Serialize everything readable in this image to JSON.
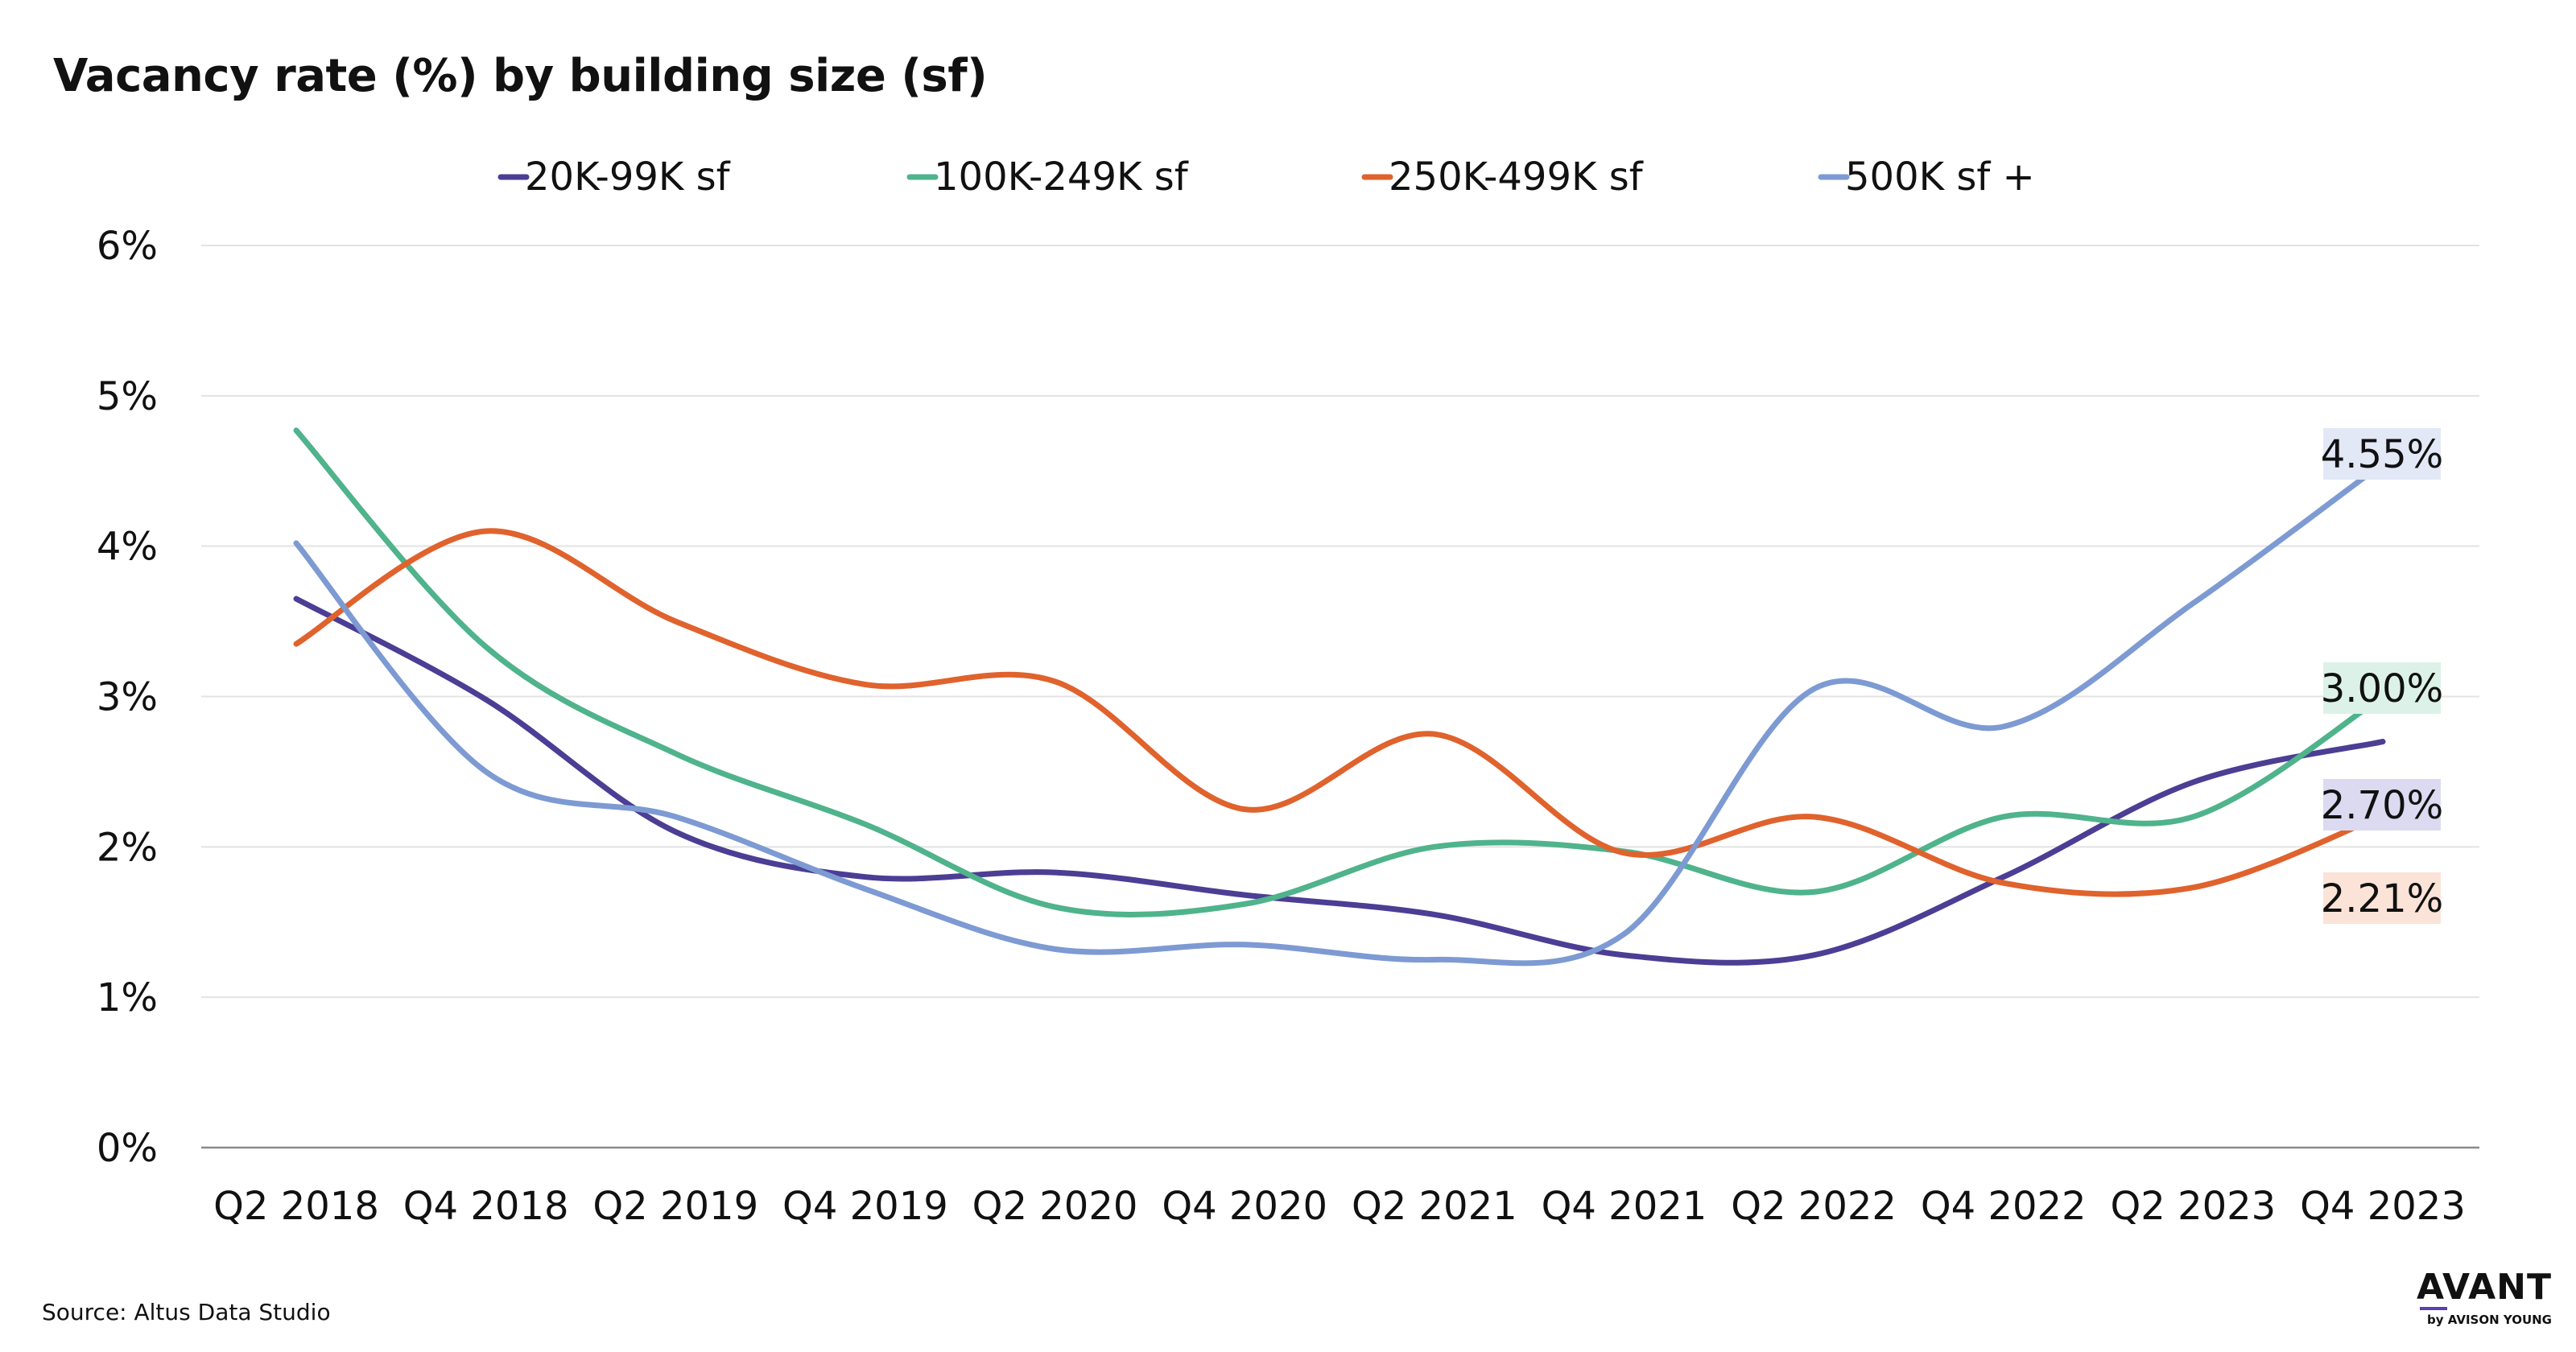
{
  "title": "Vacancy rate (%) by building size (sf)",
  "source": "Source:  Altus Data Studio",
  "logo": {
    "main": "AVANT",
    "sub": "by AVISON YOUNG",
    "accent_color": "#5b3fb0"
  },
  "chart_data": {
    "type": "line",
    "title": "Vacancy rate (%) by building size (sf)",
    "xlabel": "",
    "ylabel": "",
    "ylim": [
      0,
      6
    ],
    "yticks": [
      0,
      1,
      2,
      3,
      4,
      5,
      6
    ],
    "ytick_labels": [
      "0%",
      "1%",
      "2%",
      "3%",
      "4%",
      "5%",
      "6%"
    ],
    "grid": true,
    "legend_position": "top",
    "categories": [
      "Q2 2018",
      "Q4 2018",
      "Q2 2019",
      "Q4 2019",
      "Q2 2020",
      "Q4 2020",
      "Q2 2021",
      "Q4 2021",
      "Q2 2022",
      "Q4 2022",
      "Q2 2023",
      "Q4 2023"
    ],
    "series": [
      {
        "name": "20K-99K sf",
        "color": "#4b3e94",
        "values": [
          3.65,
          2.98,
          2.1,
          1.8,
          1.83,
          1.68,
          1.55,
          1.28,
          1.28,
          1.8,
          2.43,
          2.7
        ],
        "end_label": "2.70%",
        "label_bg": "#dcdaf0"
      },
      {
        "name": "100K-249K sf",
        "color": "#4fb38c",
        "values": [
          4.77,
          3.33,
          2.62,
          2.15,
          1.6,
          1.62,
          2.0,
          1.97,
          1.7,
          2.2,
          2.2,
          3.0
        ],
        "end_label": "3.00%",
        "label_bg": "#dcf2e8"
      },
      {
        "name": "250K-499K sf",
        "color": "#e0622d",
        "values": [
          3.35,
          4.1,
          3.5,
          3.08,
          3.1,
          2.25,
          2.75,
          1.96,
          2.2,
          1.76,
          1.73,
          2.21
        ],
        "end_label": "2.21%",
        "label_bg": "#fbe3d8"
      },
      {
        "name": "500K sf +",
        "color": "#7d9ad3",
        "values": [
          4.02,
          2.5,
          2.2,
          1.72,
          1.32,
          1.35,
          1.25,
          1.42,
          3.05,
          2.8,
          3.62,
          4.55
        ],
        "end_label": "4.55%",
        "label_bg": "#e2e8f6"
      }
    ]
  }
}
